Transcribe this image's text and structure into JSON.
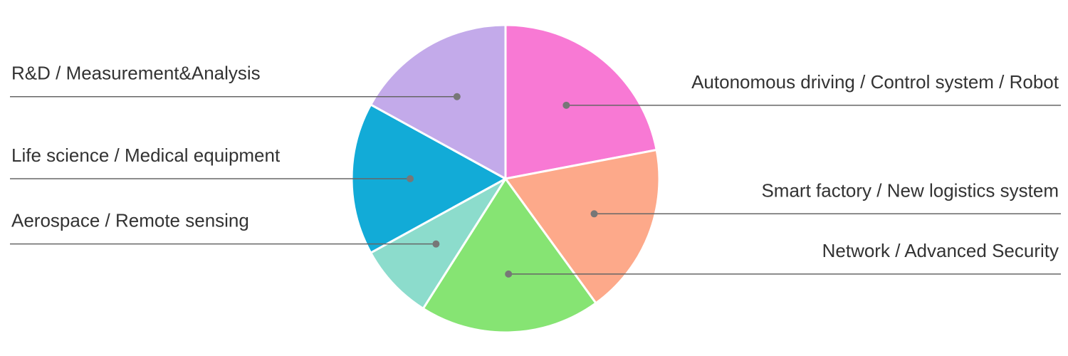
{
  "chart_data": {
    "type": "pie",
    "categories": [
      "Autonomous driving / Control system / Robot",
      "Smart factory / New logistics system",
      "Network / Advanced Security",
      "Aerospace / Remote sensing",
      "Life science / Medical equipment",
      "R&D / Measurement&Analysis"
    ],
    "values": [
      22,
      18,
      19,
      8,
      16,
      17
    ],
    "colors": [
      "#f879d4",
      "#fda98a",
      "#86e473",
      "#8cdccc",
      "#12abd7",
      "#c3aaea"
    ]
  }
}
